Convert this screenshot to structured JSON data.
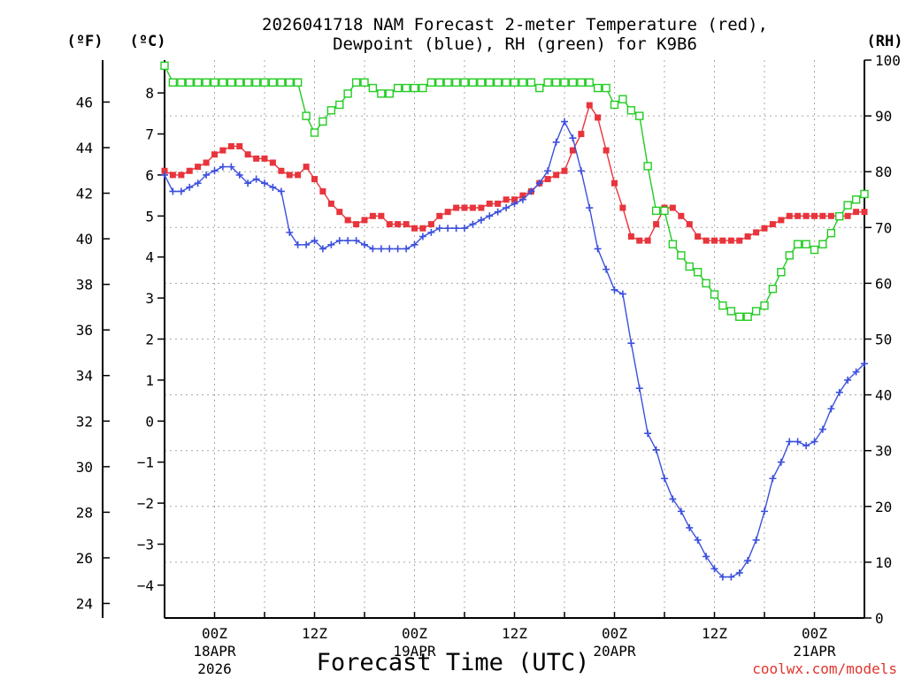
{
  "chart_data": {
    "type": "line",
    "title_line1": "2026041718 NAM Forecast 2-meter Temperature (red),",
    "title_line2": "Dewpoint (blue), RH (green) for K9B6",
    "xlabel": "Forecast Time (UTC)",
    "credit": "coolwx.com/models",
    "left_outer_unit": "(ºF)",
    "left_inner_unit": "(ºC)",
    "right_unit": "(RH)",
    "x_range_hours": [
      -5,
      65
    ],
    "x_ticks": [
      {
        "hour": 0,
        "label": "00Z",
        "sub1": "18APR",
        "sub2": "2026"
      },
      {
        "hour": 10,
        "label": "12Z",
        "sub1": "",
        "sub2": ""
      },
      {
        "hour": 20,
        "label": "00Z",
        "sub1": "19APR",
        "sub2": ""
      },
      {
        "hour": 30,
        "label": "12Z",
        "sub1": "",
        "sub2": ""
      },
      {
        "hour": 40,
        "label": "00Z",
        "sub1": "20APR",
        "sub2": ""
      },
      {
        "hour": 50,
        "label": "12Z",
        "sub1": "",
        "sub2": ""
      },
      {
        "hour": 60,
        "label": "00Z",
        "sub1": "21APR",
        "sub2": ""
      }
    ],
    "celsius_range": [
      -4.8,
      8.8
    ],
    "celsius_ticks": [
      -4,
      -3,
      -2,
      -1,
      0,
      1,
      2,
      3,
      4,
      5,
      6,
      7,
      8
    ],
    "fahrenheit_ticks": [
      24,
      26,
      28,
      30,
      32,
      34,
      36,
      38,
      40,
      42,
      44,
      46
    ],
    "rh_range": [
      0,
      100
    ],
    "rh_ticks": [
      0,
      10,
      20,
      30,
      40,
      50,
      60,
      70,
      80,
      90,
      100
    ],
    "series": [
      {
        "name": "Temperature",
        "color": "#e8343c",
        "marker": "filled-square",
        "axis": "celsius",
        "x": [
          -5,
          -4.17,
          -3.33,
          -2.5,
          -1.67,
          -0.83,
          0,
          0.83,
          1.67,
          2.5,
          3.33,
          4.17,
          5,
          5.83,
          6.67,
          7.5,
          8.33,
          9.17,
          10,
          10.83,
          11.67,
          12.5,
          13.33,
          14.17,
          15,
          15.83,
          16.67,
          17.5,
          18.33,
          19.17,
          20,
          20.83,
          21.67,
          22.5,
          23.33,
          24.17,
          25,
          25.83,
          26.67,
          27.5,
          28.33,
          29.17,
          30,
          30.83,
          31.67,
          32.5,
          33.33,
          34.17,
          35,
          35.83,
          36.67,
          37.5,
          38.33,
          39.17,
          40,
          40.83,
          41.67,
          42.5,
          43.33,
          44.17,
          45,
          45.83,
          46.67,
          47.5,
          48.33,
          49.17,
          50,
          50.83,
          51.67,
          52.5,
          53.33,
          54.17,
          55,
          55.83,
          56.67,
          57.5,
          58.33,
          59.17,
          60,
          60.83,
          61.67,
          62.5,
          63.33,
          64.17,
          65
        ],
        "values": [
          6.1,
          6.0,
          6.0,
          6.1,
          6.2,
          6.3,
          6.5,
          6.6,
          6.7,
          6.7,
          6.5,
          6.4,
          6.4,
          6.3,
          6.1,
          6.0,
          6.0,
          6.2,
          5.9,
          5.6,
          5.3,
          5.1,
          4.9,
          4.8,
          4.9,
          5.0,
          5.0,
          4.8,
          4.8,
          4.8,
          4.7,
          4.7,
          4.8,
          5.0,
          5.1,
          5.2,
          5.2,
          5.2,
          5.2,
          5.3,
          5.3,
          5.4,
          5.4,
          5.5,
          5.6,
          5.8,
          5.9,
          6.0,
          6.1,
          6.6,
          7.0,
          7.7,
          7.4,
          6.6,
          5.8,
          5.2,
          4.5,
          4.4,
          4.4,
          4.8,
          5.2,
          5.2,
          5.0,
          4.8,
          4.5,
          4.4,
          4.4,
          4.4,
          4.4,
          4.4,
          4.5,
          4.6,
          4.7,
          4.8,
          4.9,
          5.0,
          5.0,
          5.0,
          5.0,
          5.0,
          5.0,
          5.0,
          5.0,
          5.1,
          5.1
        ]
      },
      {
        "name": "Dewpoint",
        "color": "#3c50dc",
        "marker": "plus",
        "axis": "celsius",
        "x": [
          -5,
          -4.17,
          -3.33,
          -2.5,
          -1.67,
          -0.83,
          0,
          0.83,
          1.67,
          2.5,
          3.33,
          4.17,
          5,
          5.83,
          6.67,
          7.5,
          8.33,
          9.17,
          10,
          10.83,
          11.67,
          12.5,
          13.33,
          14.17,
          15,
          15.83,
          16.67,
          17.5,
          18.33,
          19.17,
          20,
          20.83,
          21.67,
          22.5,
          23.33,
          24.17,
          25,
          25.83,
          26.67,
          27.5,
          28.33,
          29.17,
          30,
          30.83,
          31.67,
          32.5,
          33.33,
          34.17,
          35,
          35.83,
          36.67,
          37.5,
          38.33,
          39.17,
          40,
          40.83,
          41.67,
          42.5,
          43.33,
          44.17,
          45,
          45.83,
          46.67,
          47.5,
          48.33,
          49.17,
          50,
          50.83,
          51.67,
          52.5,
          53.33,
          54.17,
          55,
          55.83,
          56.67,
          57.5,
          58.33,
          59.17,
          60,
          60.83,
          61.67,
          62.5,
          63.33,
          64.17,
          65
        ],
        "values": [
          6.0,
          5.6,
          5.6,
          5.7,
          5.8,
          6.0,
          6.1,
          6.2,
          6.2,
          6.0,
          5.8,
          5.9,
          5.8,
          5.7,
          5.6,
          4.6,
          4.3,
          4.3,
          4.4,
          4.2,
          4.3,
          4.4,
          4.4,
          4.4,
          4.3,
          4.2,
          4.2,
          4.2,
          4.2,
          4.2,
          4.3,
          4.5,
          4.6,
          4.7,
          4.7,
          4.7,
          4.7,
          4.8,
          4.9,
          5.0,
          5.1,
          5.2,
          5.3,
          5.4,
          5.6,
          5.8,
          6.1,
          6.8,
          7.3,
          6.9,
          6.1,
          5.2,
          4.2,
          3.7,
          3.2,
          3.1,
          1.9,
          0.8,
          -0.3,
          -0.7,
          -1.4,
          -1.9,
          -2.2,
          -2.6,
          -2.9,
          -3.3,
          -3.6,
          -3.8,
          -3.8,
          -3.7,
          -3.4,
          -2.9,
          -2.2,
          -1.4,
          -1.0,
          -0.5,
          -0.5,
          -0.6,
          -0.5,
          -0.2,
          0.3,
          0.7,
          1.0,
          1.2,
          1.4
        ]
      },
      {
        "name": "RH",
        "color": "#22cc22",
        "marker": "open-square",
        "axis": "rh",
        "x": [
          -5,
          -4.17,
          -3.33,
          -2.5,
          -1.67,
          -0.83,
          0,
          0.83,
          1.67,
          2.5,
          3.33,
          4.17,
          5,
          5.83,
          6.67,
          7.5,
          8.33,
          9.17,
          10,
          10.83,
          11.67,
          12.5,
          13.33,
          14.17,
          15,
          15.83,
          16.67,
          17.5,
          18.33,
          19.17,
          20,
          20.83,
          21.67,
          22.5,
          23.33,
          24.17,
          25,
          25.83,
          26.67,
          27.5,
          28.33,
          29.17,
          30,
          30.83,
          31.67,
          32.5,
          33.33,
          34.17,
          35,
          35.83,
          36.67,
          37.5,
          38.33,
          39.17,
          40,
          40.83,
          41.67,
          42.5,
          43.33,
          44.17,
          45,
          45.83,
          46.67,
          47.5,
          48.33,
          49.17,
          50,
          50.83,
          51.67,
          52.5,
          53.33,
          54.17,
          55,
          55.83,
          56.67,
          57.5,
          58.33,
          59.17,
          60,
          60.83,
          61.67,
          62.5,
          63.33,
          64.17,
          65
        ],
        "values": [
          99,
          96,
          96,
          96,
          96,
          96,
          96,
          96,
          96,
          96,
          96,
          96,
          96,
          96,
          96,
          96,
          96,
          90,
          87,
          89,
          91,
          92,
          94,
          96,
          96,
          95,
          94,
          94,
          95,
          95,
          95,
          95,
          96,
          96,
          96,
          96,
          96,
          96,
          96,
          96,
          96,
          96,
          96,
          96,
          96,
          95,
          96,
          96,
          96,
          96,
          96,
          96,
          95,
          95,
          92,
          93,
          91,
          90,
          81,
          73,
          73,
          67,
          65,
          63,
          62,
          60,
          58,
          56,
          55,
          54,
          54,
          55,
          56,
          59,
          62,
          65,
          67,
          67,
          66,
          67,
          69,
          72,
          74,
          75,
          76
        ]
      }
    ]
  }
}
